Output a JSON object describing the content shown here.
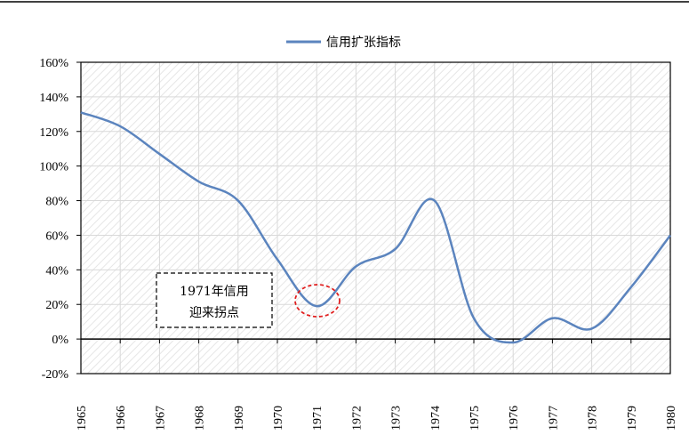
{
  "chart_data": {
    "type": "line",
    "title": "",
    "xlabel": "",
    "ylabel": "",
    "x": [
      "1965",
      "1966",
      "1967",
      "1968",
      "1969",
      "1970",
      "1971",
      "1972",
      "1973",
      "1974",
      "1975",
      "1976",
      "1977",
      "1978",
      "1979",
      "1980"
    ],
    "ylim": [
      -0.2,
      1.6
    ],
    "yticks": [
      "-20%",
      "0%",
      "20%",
      "40%",
      "60%",
      "80%",
      "100%",
      "120%",
      "140%",
      "160%"
    ],
    "legend_position": "top-center",
    "grid": true,
    "series": [
      {
        "name": "信用扩张指标",
        "color": "#5B84BE",
        "values": [
          1.31,
          1.23,
          1.07,
          0.91,
          0.8,
          0.46,
          0.19,
          0.42,
          0.52,
          0.8,
          0.12,
          -0.02,
          0.12,
          0.06,
          0.3,
          0.6
        ]
      }
    ],
    "annotation": {
      "text_line1": "1971年信用",
      "text_line2": "迎来拐点",
      "highlight_x": "1971",
      "highlight_color": "#E02020"
    }
  }
}
